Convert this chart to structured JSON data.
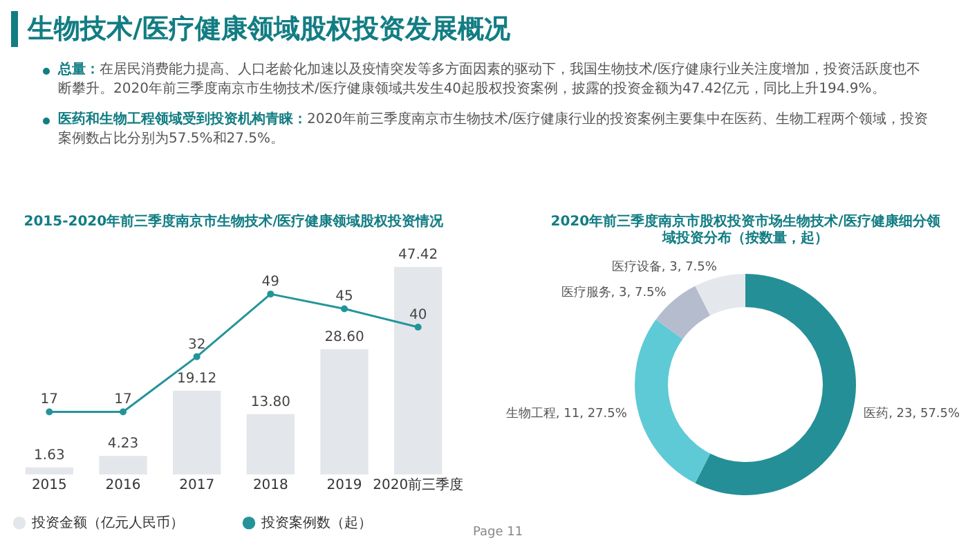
{
  "chart_data": [
    {
      "type": "other",
      "title": "生物技术/医疗健康领域股权投资发展概况",
      "annotations": [
        "总量：在居民消费能力提高、人口老龄化加速以及疫情突发等多方面因素的驱动下，我国生物技术/医疗健康行业关注度增加，投资活跃度也不断攀升。2020年前三季度南京市生物技术/医疗健康领域共发生40起股权投资案例，披露的投资金额为47.42亿元，同比上升194.9%。",
        "医药和生物工程领域受到投资机构青睐：2020年前三季度南京市生物技术/医疗健康行业的投资案例主要集中在医药、生物工程两个领域，投资案例数占比分别为57.5%和27.5%。",
        "Page 11"
      ]
    },
    {
      "type": "bar",
      "title": "2015-2020年前三季度南京市生物技术/医疗健康领域股权投资情况",
      "categories": [
        "2015",
        "2016",
        "2017",
        "2018",
        "2019",
        "2020前三季度"
      ],
      "series": [
        {
          "name": "投资金额（亿元人民币）",
          "type": "bar",
          "color": "#e3e6ea",
          "values": [
            1.63,
            4.23,
            19.12,
            13.8,
            28.6,
            47.42
          ],
          "value_labels": [
            "1.63",
            "4.23",
            "19.12",
            "13.80",
            "28.60",
            "47.42"
          ]
        },
        {
          "name": "投资案例数（起）",
          "type": "line",
          "axis": "y2",
          "color": "#23949a",
          "values": [
            17,
            17,
            32,
            49,
            45,
            40
          ]
        }
      ],
      "data_labels": true,
      "legend": "bottom",
      "marker": "circle",
      "tick_labels": "x"
    },
    {
      "type": "donut",
      "title": "2020年前三季度南京市股权投资市场生物技术/医疗健康细分领域投资分布（按数量，起）",
      "categories": [
        "医药",
        "生物工程",
        "医疗服务",
        "医疗设备"
      ],
      "values": [
        23,
        11,
        3,
        3
      ],
      "colors": [
        "#248f96",
        "#5ecad6",
        "#b4bccd",
        "#e4e8ec"
      ],
      "value_labels": [
        "23, 57.5%",
        "11, 27.5%",
        "3, 7.5%",
        "3, 7.5%"
      ]
    }
  ]
}
